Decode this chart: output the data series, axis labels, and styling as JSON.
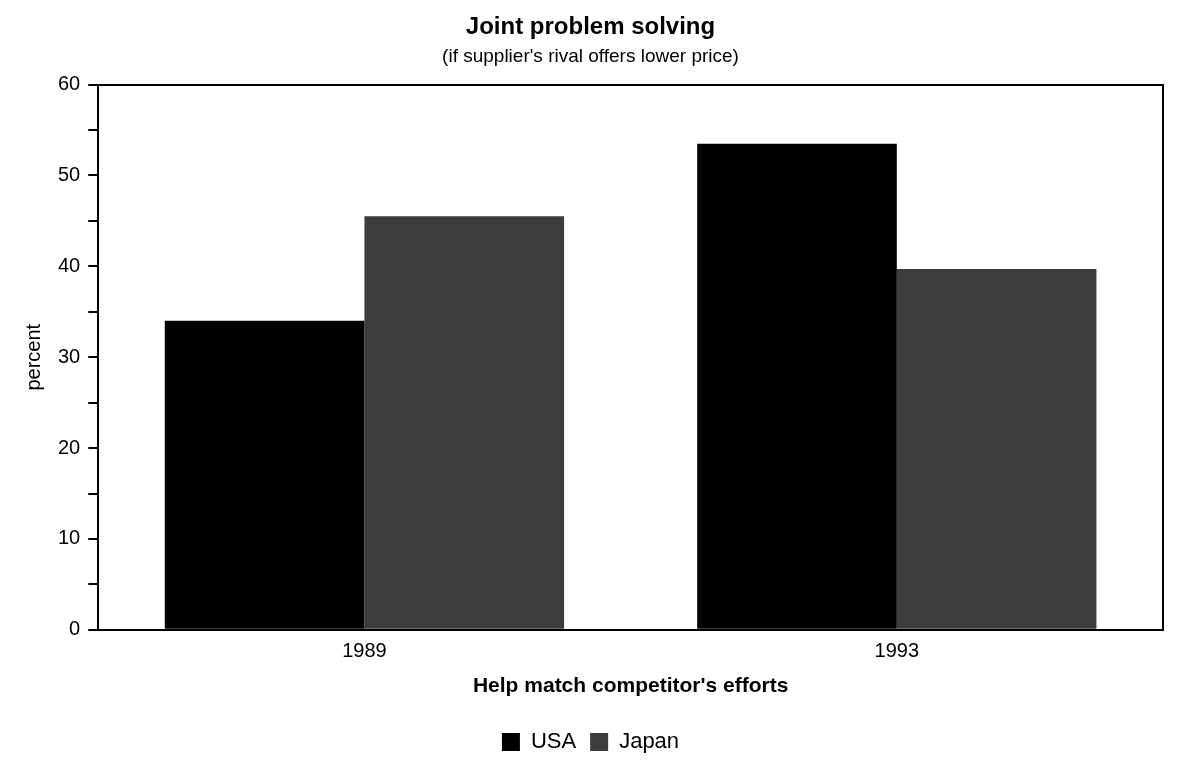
{
  "chart_data": {
    "type": "bar",
    "title": "Joint problem solving",
    "subtitle": "(if supplier's rival offers lower price)",
    "xlabel": "Help match competitor's efforts",
    "ylabel": "percent",
    "categories": [
      "1989",
      "1993"
    ],
    "series": [
      {
        "name": "USA",
        "color": "#000000",
        "values": [
          34,
          53.5
        ]
      },
      {
        "name": "Japan",
        "color": "#3c3c3c",
        "values": [
          45.5,
          39.7
        ]
      }
    ],
    "ylim": [
      0,
      60
    ],
    "yticks": [
      0,
      {
        "value": 5,
        "label": null
      },
      10,
      {
        "value": 15,
        "label": null
      },
      20,
      {
        "value": 25,
        "label": null
      },
      30,
      {
        "value": 35,
        "label": null
      },
      40,
      {
        "value": 45,
        "label": null
      },
      50,
      {
        "value": 55,
        "label": null
      },
      60
    ],
    "grid": false,
    "legend": "bottom"
  }
}
